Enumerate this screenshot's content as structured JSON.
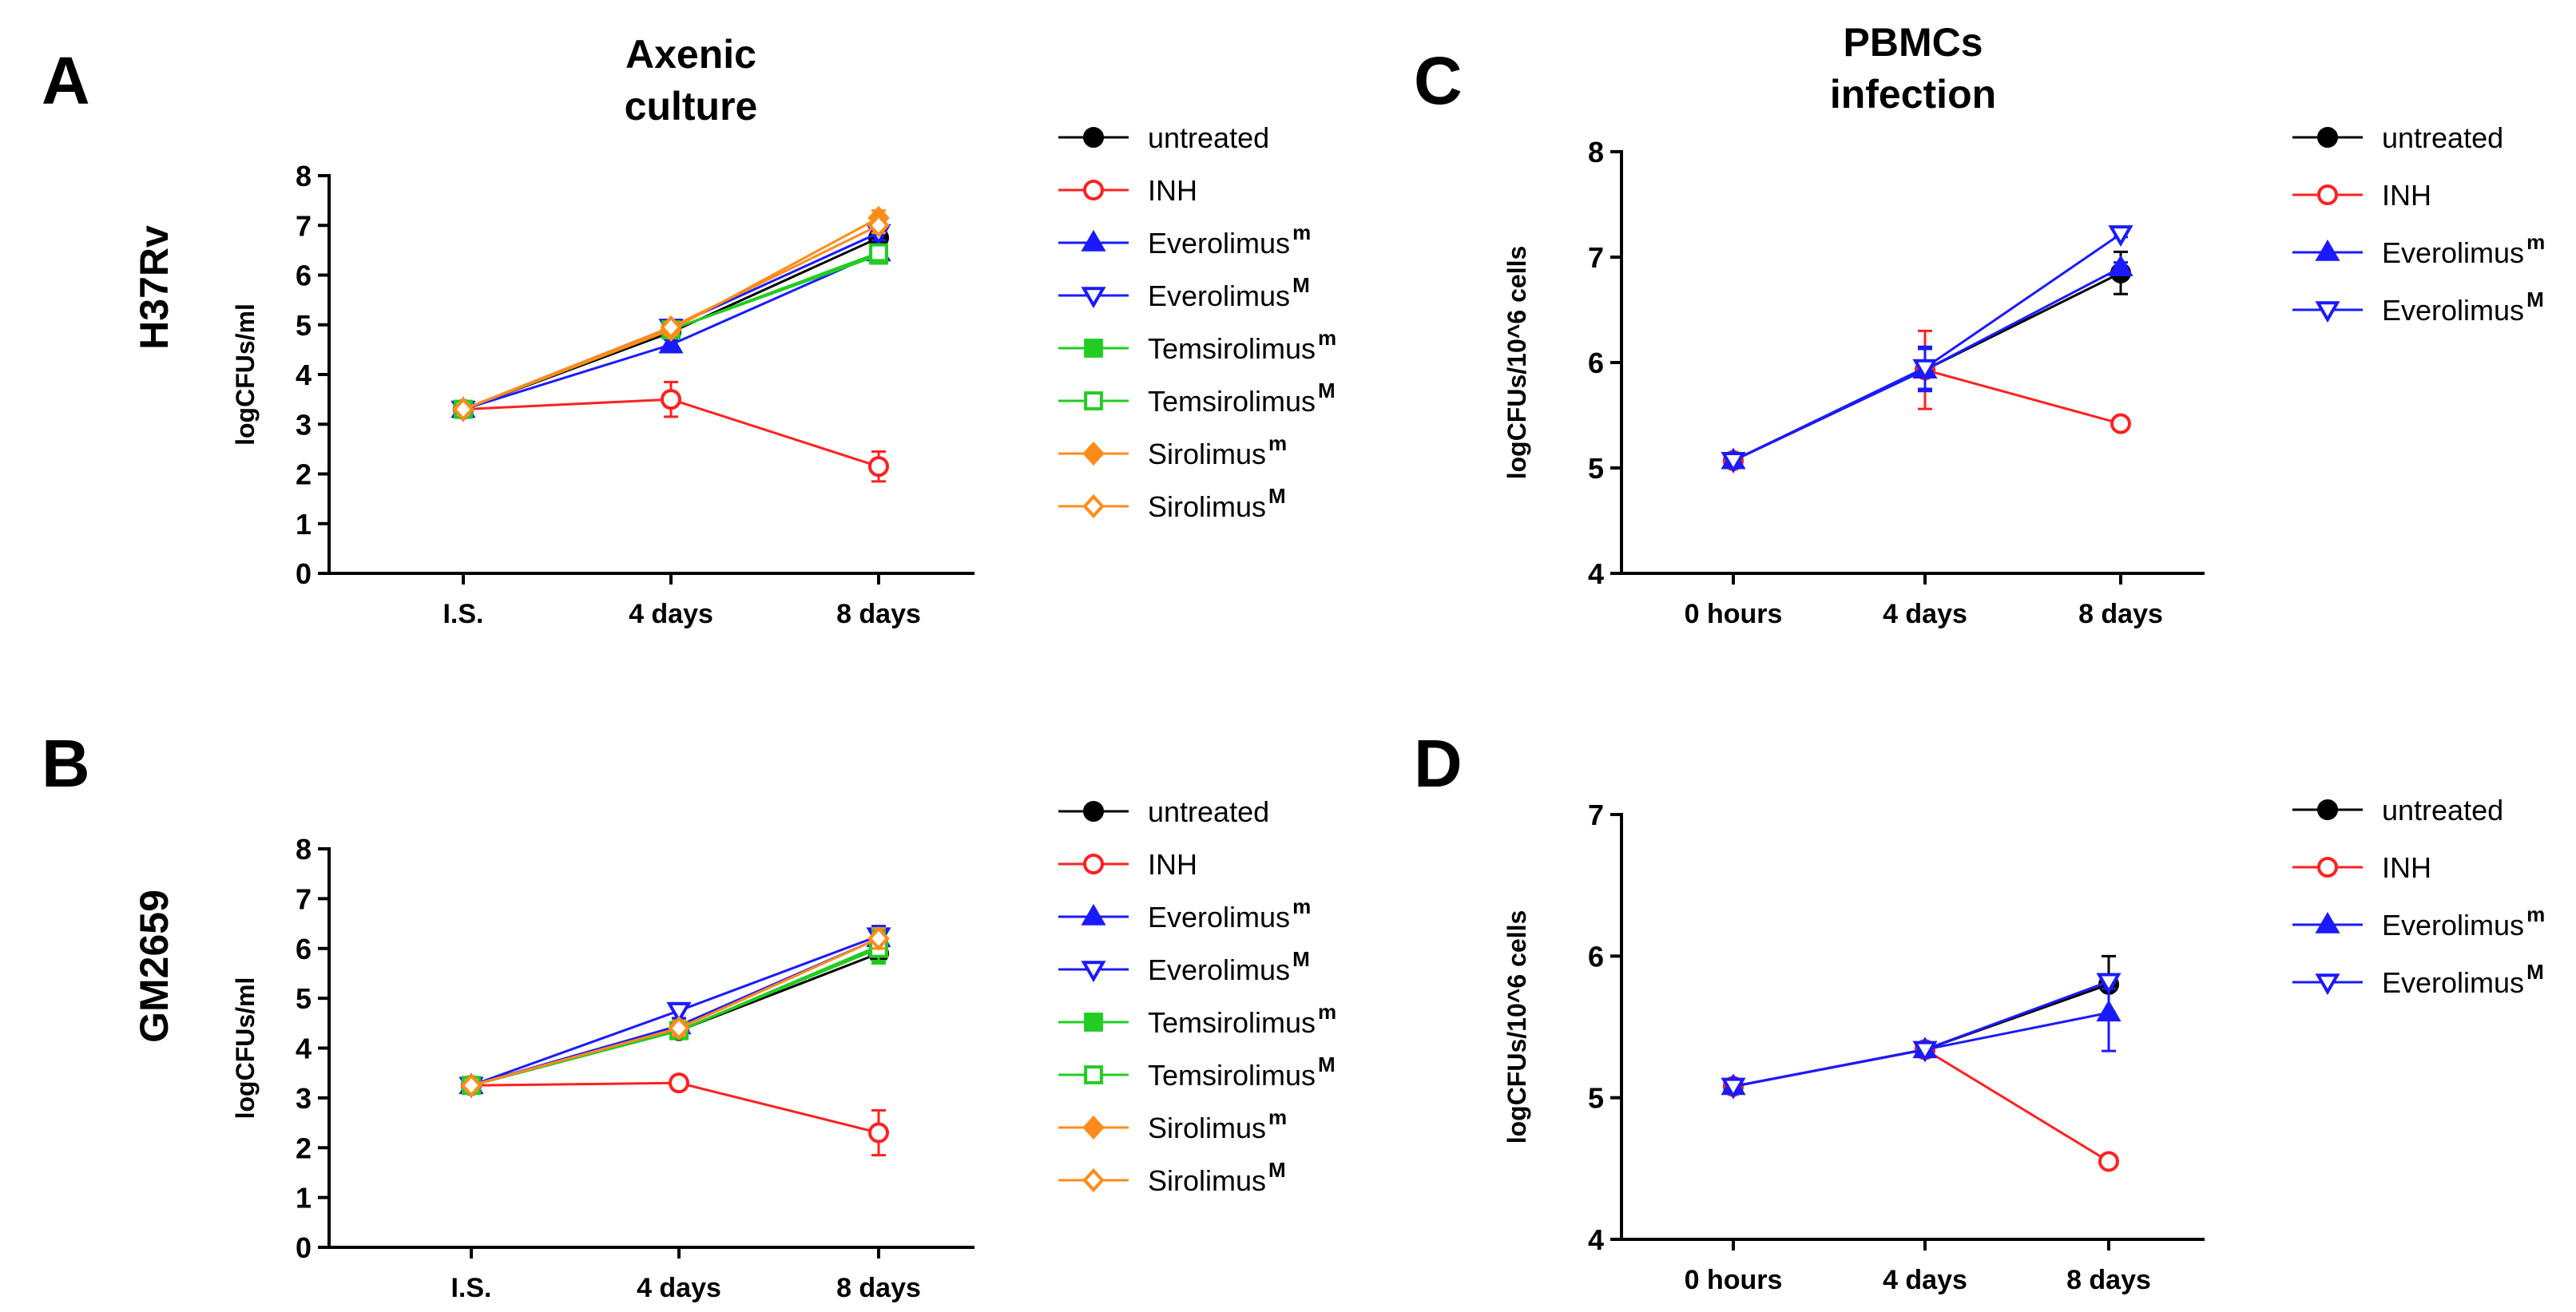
{
  "figure": {
    "column_titles": [
      [
        "Axenic",
        "culture"
      ],
      [
        "PBMCs",
        "infection"
      ]
    ],
    "row_labels": [
      "H37Rv",
      "GM2659"
    ]
  },
  "series_styles": {
    "untreated": {
      "color": "#000000",
      "marker": "circle",
      "filled": true
    },
    "INH": {
      "color": "#ff2020",
      "marker": "circle",
      "filled": false
    },
    "Everolimus_m": {
      "color": "#1a1aff",
      "marker": "triangle-up",
      "filled": true
    },
    "Everolimus_M": {
      "color": "#1a1aff",
      "marker": "triangle-down",
      "filled": false
    },
    "Temsirolimus_m": {
      "color": "#22cc22",
      "marker": "square",
      "filled": true
    },
    "Temsirolimus_M": {
      "color": "#22cc22",
      "marker": "square",
      "filled": false
    },
    "Sirolimus_m": {
      "color": "#ff8c1a",
      "marker": "diamond",
      "filled": true
    },
    "Sirolimus_M": {
      "color": "#ff8c1a",
      "marker": "diamond",
      "filled": false
    }
  },
  "chart_data": [
    {
      "panel": "A",
      "type": "line",
      "ylabel": "logCFUs/ml",
      "categories": [
        "I.S.",
        "4 days",
        "8 days"
      ],
      "ylim": [
        0,
        8
      ],
      "yticks": [
        0,
        1,
        2,
        3,
        4,
        5,
        6,
        7,
        8
      ],
      "legend": "right",
      "series": [
        {
          "key": "untreated",
          "name": "untreated",
          "sup": "",
          "values": [
            3.3,
            4.85,
            6.75
          ],
          "err": [
            0.05,
            0.1,
            0.15
          ]
        },
        {
          "key": "INH",
          "name": "INH",
          "sup": "",
          "values": [
            3.3,
            3.5,
            2.15
          ],
          "err": [
            0.05,
            0.35,
            0.3
          ]
        },
        {
          "key": "Everolimus_m",
          "name": "Everolimus",
          "sup": "m",
          "values": [
            3.3,
            4.6,
            6.45
          ],
          "err": [
            0.05,
            0.1,
            0.15
          ]
        },
        {
          "key": "Everolimus_M",
          "name": "Everolimus",
          "sup": "M",
          "values": [
            3.3,
            4.95,
            6.85
          ],
          "err": [
            0.05,
            0.1,
            0.15
          ]
        },
        {
          "key": "Temsirolimus_m",
          "name": "Temsirolimus",
          "sup": "m",
          "values": [
            3.3,
            4.9,
            6.4
          ],
          "err": [
            0.05,
            0.1,
            0.15
          ]
        },
        {
          "key": "Temsirolimus_M",
          "name": "Temsirolimus",
          "sup": "M",
          "values": [
            3.3,
            4.9,
            6.45
          ],
          "err": [
            0.05,
            0.1,
            0.15
          ]
        },
        {
          "key": "Sirolimus_m",
          "name": "Sirolimus",
          "sup": "m",
          "values": [
            3.3,
            4.9,
            7.15
          ],
          "err": [
            0.05,
            0.1,
            0.15
          ]
        },
        {
          "key": "Sirolimus_M",
          "name": "Sirolimus",
          "sup": "M",
          "values": [
            3.3,
            4.95,
            7.0
          ],
          "err": [
            0.05,
            0.1,
            0.15
          ]
        }
      ]
    },
    {
      "panel": "B",
      "type": "line",
      "ylabel": "logCFUs/ml",
      "categories": [
        "I.S.",
        "4 days",
        "8 days"
      ],
      "ylim": [
        0,
        8
      ],
      "yticks": [
        0,
        1,
        2,
        3,
        4,
        5,
        6,
        7,
        8
      ],
      "legend": "right",
      "series": [
        {
          "key": "untreated",
          "name": "untreated",
          "sup": "",
          "values": [
            3.25,
            4.35,
            5.9
          ],
          "err": [
            0.05,
            0.15,
            0.2
          ]
        },
        {
          "key": "INH",
          "name": "INH",
          "sup": "",
          "values": [
            3.25,
            3.3,
            2.3
          ],
          "err": [
            0.05,
            0.05,
            0.45
          ]
        },
        {
          "key": "Everolimus_m",
          "name": "Everolimus",
          "sup": "m",
          "values": [
            3.25,
            4.45,
            6.2
          ],
          "err": [
            0.05,
            0.15,
            0.2
          ]
        },
        {
          "key": "Everolimus_M",
          "name": "Everolimus",
          "sup": "M",
          "values": [
            3.25,
            4.75,
            6.25
          ],
          "err": [
            0.05,
            0.15,
            0.2
          ]
        },
        {
          "key": "Temsirolimus_m",
          "name": "Temsirolimus",
          "sup": "m",
          "values": [
            3.25,
            4.35,
            6.05
          ],
          "err": [
            0.05,
            0.15,
            0.3
          ]
        },
        {
          "key": "Temsirolimus_M",
          "name": "Temsirolimus",
          "sup": "M",
          "values": [
            3.25,
            4.35,
            6.0
          ],
          "err": [
            0.05,
            0.15,
            0.3
          ]
        },
        {
          "key": "Sirolimus_m",
          "name": "Sirolimus",
          "sup": "m",
          "values": [
            3.25,
            4.4,
            6.2
          ],
          "err": [
            0.05,
            0.15,
            0.2
          ]
        },
        {
          "key": "Sirolimus_M",
          "name": "Sirolimus",
          "sup": "M",
          "values": [
            3.25,
            4.4,
            6.2
          ],
          "err": [
            0.05,
            0.15,
            0.2
          ]
        }
      ]
    },
    {
      "panel": "C",
      "type": "line",
      "ylabel": "logCFUs/10^6 cells",
      "categories": [
        "0 hours",
        "4 days",
        "8 days"
      ],
      "ylim": [
        4,
        8
      ],
      "yticks": [
        4,
        5,
        6,
        7,
        8
      ],
      "legend": "right",
      "series": [
        {
          "key": "untreated",
          "name": "untreated",
          "sup": "",
          "values": [
            5.07,
            5.93,
            6.85
          ],
          "err": [
            0.03,
            0.2,
            0.2
          ]
        },
        {
          "key": "INH",
          "name": "INH",
          "sup": "",
          "values": [
            5.07,
            5.93,
            5.42
          ],
          "err": [
            0.03,
            0.37,
            0.03
          ]
        },
        {
          "key": "Everolimus_m",
          "name": "Everolimus",
          "sup": "m",
          "values": [
            5.07,
            5.93,
            6.9
          ],
          "err": [
            0.03,
            0.2,
            0.05
          ]
        },
        {
          "key": "Everolimus_M",
          "name": "Everolimus",
          "sup": "M",
          "values": [
            5.07,
            5.95,
            7.22
          ],
          "err": [
            0.03,
            0.2,
            0.03
          ]
        }
      ]
    },
    {
      "panel": "D",
      "type": "line",
      "ylabel": "logCFUs/10^6 cells",
      "categories": [
        "0 hours",
        "4 days",
        "8 days"
      ],
      "ylim": [
        4,
        7
      ],
      "yticks": [
        4,
        5,
        6,
        7
      ],
      "legend": "right",
      "series": [
        {
          "key": "untreated",
          "name": "untreated",
          "sup": "",
          "values": [
            5.08,
            5.34,
            5.8
          ],
          "err": [
            0.02,
            0.03,
            0.2
          ]
        },
        {
          "key": "INH",
          "name": "INH",
          "sup": "",
          "values": [
            5.08,
            5.34,
            4.55
          ],
          "err": [
            0.02,
            0.03,
            0.03
          ]
        },
        {
          "key": "Everolimus_m",
          "name": "Everolimus",
          "sup": "m",
          "values": [
            5.08,
            5.34,
            5.6
          ],
          "err": [
            0.02,
            0.03,
            0.27
          ]
        },
        {
          "key": "Everolimus_M",
          "name": "Everolimus",
          "sup": "M",
          "values": [
            5.08,
            5.34,
            5.82
          ],
          "err": [
            0.02,
            0.03,
            0.05
          ]
        }
      ]
    }
  ]
}
